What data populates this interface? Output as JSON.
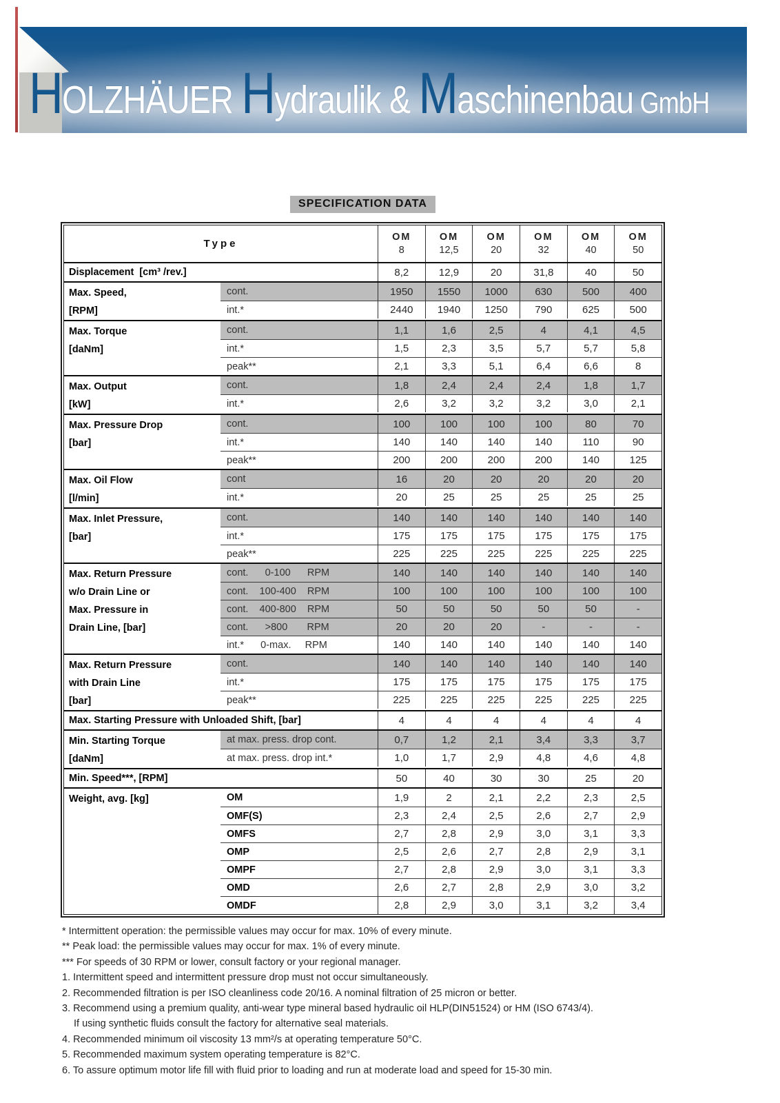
{
  "banner": {
    "logo_segments": [
      {
        "text": "H",
        "kind": "initial"
      },
      {
        "text": "OLZHÄUER ",
        "kind": "word"
      },
      {
        "text": "H",
        "kind": "initial"
      },
      {
        "text": "ydraulik & ",
        "kind": "word"
      },
      {
        "text": "M",
        "kind": "initial"
      },
      {
        "text": "aschinenbau",
        "kind": "word"
      },
      {
        "text": " GmbH",
        "kind": "suffix"
      }
    ],
    "initial_color": "#15568d",
    "banner_blue_dark": "#0f5590",
    "banner_blue_light": "#a7bacd"
  },
  "title": "SPECIFICATION DATA",
  "table": {
    "type_header": "Type",
    "columns": [
      {
        "brand": "OM",
        "size": "8"
      },
      {
        "brand": "OM",
        "size": "12,5"
      },
      {
        "brand": "OM",
        "size": "20"
      },
      {
        "brand": "OM",
        "size": "32"
      },
      {
        "brand": "OM",
        "size": "40"
      },
      {
        "brand": "OM",
        "size": "50"
      }
    ],
    "groups": [
      {
        "label_lines": [
          "Displacement  [cm³ /rev.]"
        ],
        "full_label": true,
        "rows": [
          {
            "sub": "",
            "gray": false,
            "values": [
              "8,2",
              "12,9",
              "20",
              "31,8",
              "40",
              "50"
            ]
          }
        ]
      },
      {
        "label_lines": [
          "Max. Speed,",
          "[RPM]"
        ],
        "rows": [
          {
            "sub": "cont.",
            "gray": true,
            "values": [
              "1950",
              "1550",
              "1000",
              "630",
              "500",
              "400"
            ]
          },
          {
            "sub": "int.*",
            "gray": false,
            "values": [
              "2440",
              "1940",
              "1250",
              "790",
              "625",
              "500"
            ]
          }
        ]
      },
      {
        "label_lines": [
          "Max. Torque",
          "[daNm]"
        ],
        "rows": [
          {
            "sub": "cont.",
            "gray": true,
            "values": [
              "1,1",
              "1,6",
              "2,5",
              "4",
              "4,1",
              "4,5"
            ]
          },
          {
            "sub": "int.*",
            "gray": false,
            "values": [
              "1,5",
              "2,3",
              "3,5",
              "5,7",
              "5,7",
              "5,8"
            ]
          },
          {
            "sub": "peak**",
            "gray": false,
            "values": [
              "2,1",
              "3,3",
              "5,1",
              "6,4",
              "6,6",
              "8"
            ]
          }
        ]
      },
      {
        "label_lines": [
          "Max.  Output",
          "[kW]"
        ],
        "rows": [
          {
            "sub": "cont.",
            "gray": true,
            "values": [
              "1,8",
              "2,4",
              "2,4",
              "2,4",
              "1,8",
              "1,7"
            ]
          },
          {
            "sub": "int.*",
            "gray": false,
            "values": [
              "2,6",
              "3,2",
              "3,2",
              "3,2",
              "3,0",
              "2,1"
            ]
          }
        ]
      },
      {
        "label_lines": [
          "Max. Pressure Drop",
          "[bar]"
        ],
        "rows": [
          {
            "sub": "cont.",
            "gray": true,
            "values": [
              "100",
              "100",
              "100",
              "100",
              "80",
              "70"
            ]
          },
          {
            "sub": "int.*",
            "gray": false,
            "values": [
              "140",
              "140",
              "140",
              "140",
              "110",
              "90"
            ]
          },
          {
            "sub": "peak**",
            "gray": false,
            "values": [
              "200",
              "200",
              "200",
              "200",
              "140",
              "125"
            ]
          }
        ]
      },
      {
        "label_lines": [
          "Max. Oil Flow",
          "[l/min]"
        ],
        "rows": [
          {
            "sub": "cont",
            "gray": true,
            "values": [
              "16",
              "20",
              "20",
              "20",
              "20",
              "20"
            ]
          },
          {
            "sub": "int.*",
            "gray": false,
            "values": [
              "20",
              "25",
              "25",
              "25",
              "25",
              "25"
            ]
          }
        ]
      },
      {
        "label_lines": [
          "Max. Inlet Pressure,",
          "[bar]"
        ],
        "rows": [
          {
            "sub": "cont.",
            "gray": true,
            "values": [
              "140",
              "140",
              "140",
              "140",
              "140",
              "140"
            ]
          },
          {
            "sub": "int.*",
            "gray": false,
            "values": [
              "175",
              "175",
              "175",
              "175",
              "175",
              "175"
            ]
          },
          {
            "sub": "peak**",
            "gray": false,
            "values": [
              "225",
              "225",
              "225",
              "225",
              "225",
              "225"
            ]
          }
        ]
      },
      {
        "label_lines": [
          "Max. Return Pressure",
          "w/o Drain Line or",
          "Max. Pressure in",
          "Drain  Line,  [bar]"
        ],
        "rows": [
          {
            "sub": "cont.      0-100      RPM",
            "gray": true,
            "values": [
              "140",
              "140",
              "140",
              "140",
              "140",
              "140"
            ]
          },
          {
            "sub": "cont.    100-400    RPM",
            "gray": true,
            "values": [
              "100",
              "100",
              "100",
              "100",
              "100",
              "100"
            ]
          },
          {
            "sub": "cont.    400-800    RPM",
            "gray": true,
            "values": [
              "50",
              "50",
              "50",
              "50",
              "50",
              "-"
            ]
          },
          {
            "sub": "cont.      >800       RPM",
            "gray": true,
            "values": [
              "20",
              "20",
              "20",
              "-",
              "-",
              "-"
            ]
          },
          {
            "sub": "int.*      0-max.     RPM",
            "gray": false,
            "values": [
              "140",
              "140",
              "140",
              "140",
              "140",
              "140"
            ]
          }
        ]
      },
      {
        "label_lines": [
          "Max. Return Pressure",
          "with Drain Line",
          "[bar]"
        ],
        "rows": [
          {
            "sub": "cont.",
            "gray": true,
            "values": [
              "140",
              "140",
              "140",
              "140",
              "140",
              "140"
            ]
          },
          {
            "sub": "int.*",
            "gray": false,
            "values": [
              "175",
              "175",
              "175",
              "175",
              "175",
              "175"
            ]
          },
          {
            "sub": "peak**",
            "gray": false,
            "values": [
              "225",
              "225",
              "225",
              "225",
              "225",
              "225"
            ]
          }
        ]
      },
      {
        "label_lines": [
          "Max. Starting Pressure with Unloaded Shift, [bar]"
        ],
        "full_label": true,
        "rows": [
          {
            "sub": "",
            "gray": false,
            "values": [
              "4",
              "4",
              "4",
              "4",
              "4",
              "4"
            ]
          }
        ]
      },
      {
        "label_lines": [
          "Min. Starting Torque",
          "[daNm]"
        ],
        "rows": [
          {
            "sub": "at max. press. drop cont.",
            "gray": true,
            "values": [
              "0,7",
              "1,2",
              "2,1",
              "3,4",
              "3,3",
              "3,7"
            ]
          },
          {
            "sub": "at max. press. drop int.*",
            "gray": false,
            "values": [
              "1,0",
              "1,7",
              "2,9",
              "4,8",
              "4,6",
              "4,8"
            ]
          }
        ]
      },
      {
        "label_lines": [
          "Min. Speed***, [RPM]"
        ],
        "full_label": true,
        "rows": [
          {
            "sub": "",
            "gray": false,
            "values": [
              "50",
              "40",
              "30",
              "30",
              "25",
              "20"
            ]
          }
        ]
      },
      {
        "label_lines": [
          "Weight,  avg.  [kg]"
        ],
        "rows": [
          {
            "sub": "OM",
            "sub_bold": true,
            "gray": false,
            "values": [
              "1,9",
              "2",
              "2,1",
              "2,2",
              "2,3",
              "2,5"
            ]
          },
          {
            "sub": "OMF(S)",
            "sub_bold": true,
            "gray": false,
            "values": [
              "2,3",
              "2,4",
              "2,5",
              "2,6",
              "2,7",
              "2,9"
            ]
          },
          {
            "sub": "OMFS",
            "sub_bold": true,
            "gray": false,
            "values": [
              "2,7",
              "2,8",
              "2,9",
              "3,0",
              "3,1",
              "3,3"
            ]
          },
          {
            "sub": "OMP",
            "sub_bold": true,
            "gray": false,
            "values": [
              "2,5",
              "2,6",
              "2,7",
              "2,8",
              "2,9",
              "3,1"
            ]
          },
          {
            "sub": "OMPF",
            "sub_bold": true,
            "gray": false,
            "values": [
              "2,7",
              "2,8",
              "2,9",
              "3,0",
              "3,1",
              "3,3"
            ]
          },
          {
            "sub": "OMD",
            "sub_bold": true,
            "gray": false,
            "values": [
              "2,6",
              "2,7",
              "2,8",
              "2,9",
              "3,0",
              "3,2"
            ]
          },
          {
            "sub": "OMDF",
            "sub_bold": true,
            "gray": false,
            "values": [
              "2,8",
              "2,9",
              "3,0",
              "3,1",
              "3,2",
              "3,4"
            ]
          }
        ]
      }
    ]
  },
  "footnotes": [
    {
      "text": "* Intermittent operation: the permissible values may occur for max. 10% of every minute.",
      "indent": false
    },
    {
      "text": "** Peak load: the permissible values may occur for max. 1% of every minute.",
      "indent": false
    },
    {
      "text": "*** For speeds of 30 RPM or lower, consult factory or your regional manager.",
      "indent": false
    },
    {
      "text": "1. Intermittent speed and intermittent pressure drop must not occur simultaneously.",
      "indent": false
    },
    {
      "text": "2. Recommended filtration is per ISO cleanliness code 20/16. A nominal filtration of 25 micron or better.",
      "indent": false
    },
    {
      "text": "3. Recommend using a premium quality, anti-wear type mineral based hydraulic oil HLP(DIN51524) or HM (ISO 6743/4).",
      "indent": false
    },
    {
      "text": "If using synthetic fluids consult the factory for alternative seal materials.",
      "indent": true
    },
    {
      "text": "4. Recommended minimum oil viscosity 13 mm²/s at operating temperature 50°C.",
      "indent": false
    },
    {
      "text": "5. Recommended maximum system operating temperature is 82°C.",
      "indent": false
    },
    {
      "text": "6. To assure optimum motor life fill with fluid prior to loading and run at moderate load and speed for 15-30 min.",
      "indent": false
    }
  ]
}
